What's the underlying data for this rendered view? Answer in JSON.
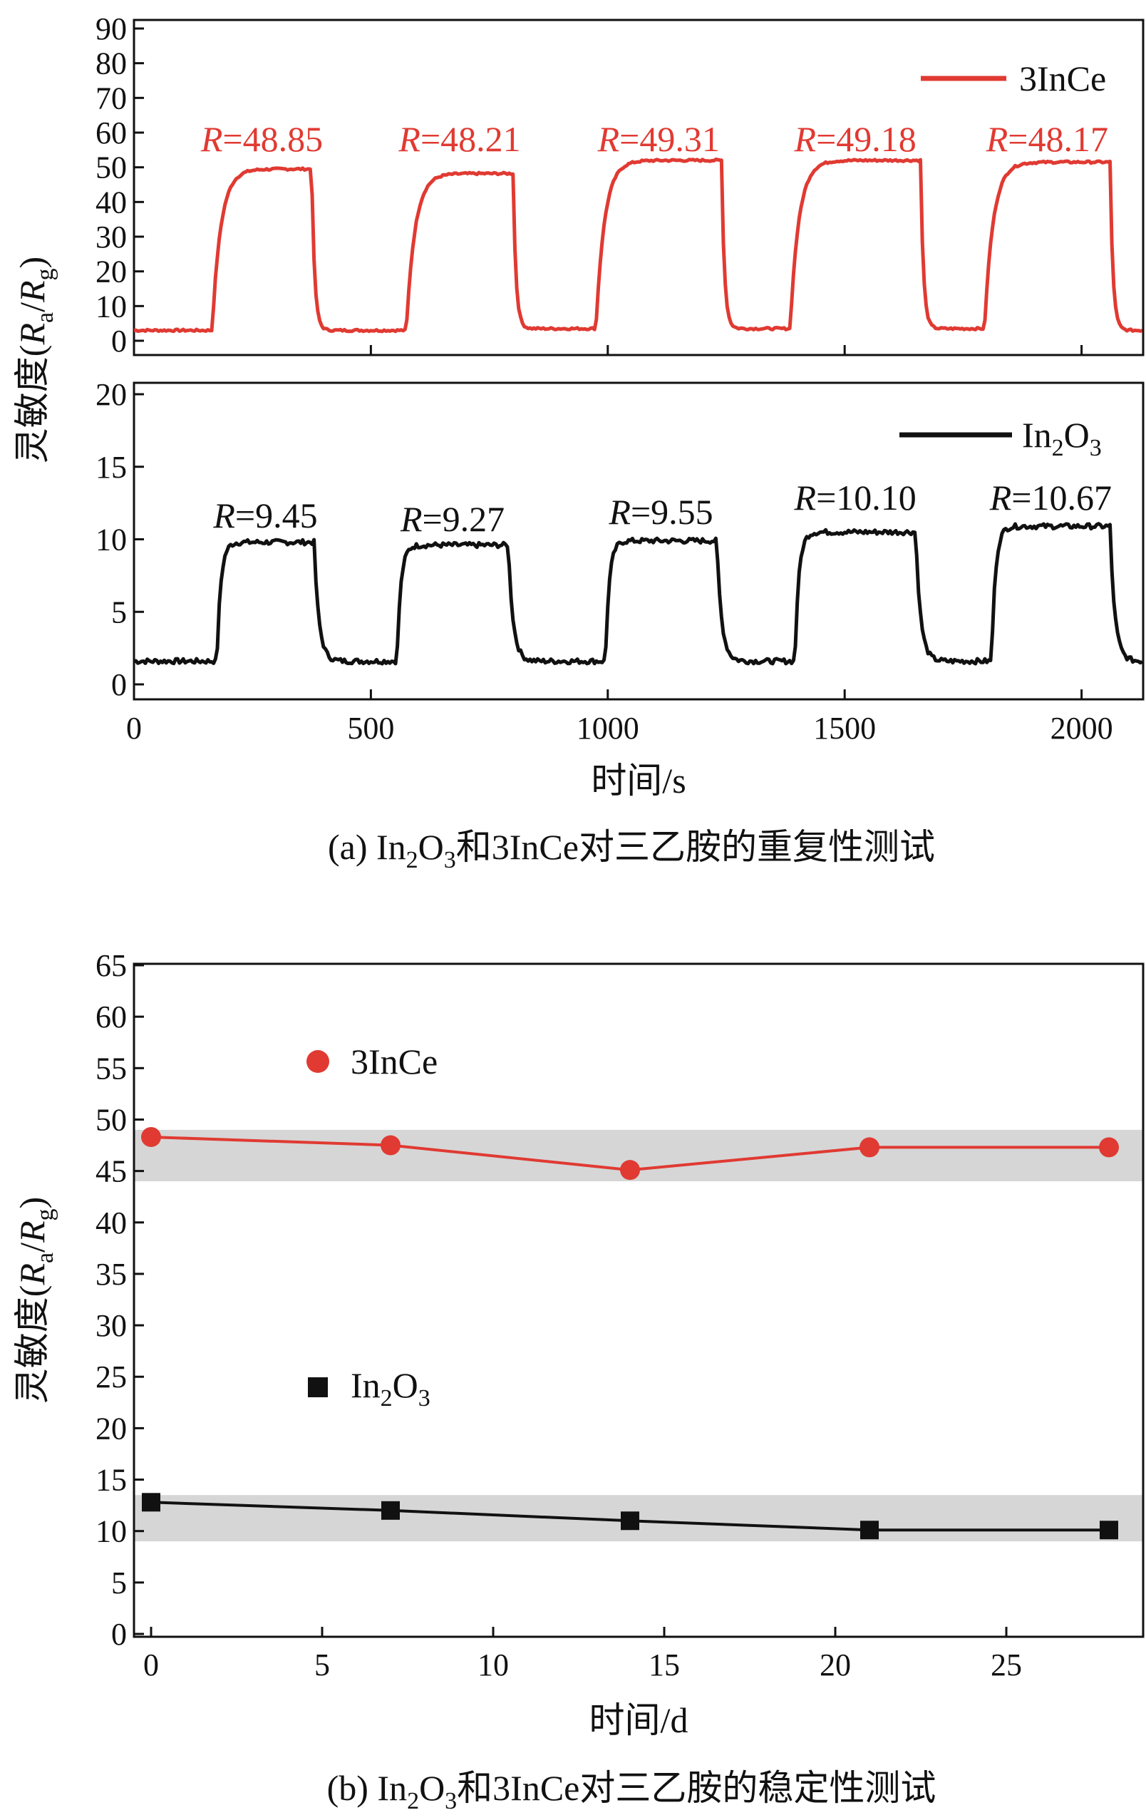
{
  "colors": {
    "red": "#e03a32",
    "black": "#111111",
    "band": "#d6d6d6"
  },
  "chart_data": [
    {
      "panel": "a-top",
      "type": "line",
      "ylim": [
        0,
        90
      ],
      "xlim": [
        0,
        2130
      ],
      "yticks": [
        "0",
        "10",
        "20",
        "30",
        "40",
        "50",
        "60",
        "70",
        "80",
        "90"
      ],
      "legend": {
        "label": "3InCe",
        "placement": "top-right"
      },
      "cycles": [
        {
          "on": 165,
          "off": 375,
          "base": 3,
          "plateau": 49.5,
          "label": "R=48.85",
          "value": 48.85
        },
        {
          "on": 575,
          "off": 800,
          "base": 3.5,
          "plateau": 48.2,
          "label": "R=48.21",
          "value": 48.21
        },
        {
          "on": 975,
          "off": 1240,
          "base": 3.5,
          "plateau": 52.0,
          "label": "R=49.31",
          "value": 49.31
        },
        {
          "on": 1385,
          "off": 1660,
          "base": 3.5,
          "plateau": 52.0,
          "label": "R=49.18",
          "value": 49.18
        },
        {
          "on": 1795,
          "off": 2060,
          "base": 3,
          "plateau": 51.5,
          "label": "R=48.17",
          "value": 48.17
        }
      ]
    },
    {
      "panel": "a-bottom",
      "type": "line",
      "ylim": [
        0,
        20
      ],
      "xlim": [
        0,
        2130
      ],
      "yticks": [
        "0",
        "5",
        "10",
        "15",
        "20"
      ],
      "xticks": [
        "0",
        "500",
        "1000",
        "1500",
        "2000"
      ],
      "xtick_values": [
        0,
        500,
        1000,
        1500,
        2000
      ],
      "legend": {
        "label_main": "In",
        "label_sub1": "2",
        "label_mid": "O",
        "label_sub2": "3",
        "placement": "top-right"
      },
      "cycles": [
        {
          "on": 175,
          "off": 380,
          "base": 1.6,
          "plateau": 9.8,
          "label": "R=9.45",
          "value": 9.45
        },
        {
          "on": 555,
          "off": 790,
          "base": 1.6,
          "plateau": 9.6,
          "label": "R=9.27",
          "value": 9.27
        },
        {
          "on": 995,
          "off": 1230,
          "base": 1.6,
          "plateau": 9.9,
          "label": "R=9.55",
          "value": 9.55
        },
        {
          "on": 1395,
          "off": 1650,
          "base": 1.6,
          "plateau": 10.5,
          "label": "R=10.10",
          "value": 10.1
        },
        {
          "on": 1810,
          "off": 2060,
          "base": 1.6,
          "plateau": 10.9,
          "label": "R=10.67",
          "value": 10.67
        }
      ]
    },
    {
      "panel": "b",
      "type": "line",
      "xlim": [
        -0.5,
        29
      ],
      "ylim": [
        0,
        65
      ],
      "xticks": [
        "0",
        "5",
        "10",
        "15",
        "20",
        "25"
      ],
      "xtick_values": [
        0,
        5,
        10,
        15,
        20,
        25
      ],
      "yticks": [
        "0",
        "5",
        "10",
        "15",
        "20",
        "25",
        "30",
        "35",
        "40",
        "45",
        "50",
        "55",
        "60",
        "65"
      ],
      "bands": [
        [
          44,
          49
        ],
        [
          9,
          13.5
        ]
      ],
      "series": [
        {
          "name": "3InCe",
          "marker": "circle",
          "color": "#e03a32",
          "x": [
            0,
            7,
            14,
            21,
            28
          ],
          "y": [
            48.3,
            47.5,
            45.1,
            47.3,
            47.3
          ]
        },
        {
          "name_main": "In",
          "name_sub1": "2",
          "name_mid": "O",
          "name_sub2": "3",
          "marker": "square",
          "color": "#111111",
          "x": [
            0,
            7,
            14,
            21,
            28
          ],
          "y": [
            12.8,
            12.0,
            11.0,
            10.1,
            10.1
          ]
        }
      ]
    }
  ],
  "text": {
    "ylabel_a_main": "灵敏度(",
    "ylabel_a_R1": "R",
    "ylabel_a_sub1": "a",
    "ylabel_a_slash": "/",
    "ylabel_a_R2": "R",
    "ylabel_a_sub2": "g",
    "ylabel_a_close": ")",
    "xlabel_a": "时间/s",
    "caption_a_pre": "(a) In",
    "caption_a_sub1": "2",
    "caption_a_mid": "O",
    "caption_a_sub2": "3",
    "caption_a_post": "和3InCe对三乙胺的重复性测试",
    "ylabel_b_main": "灵敏度(",
    "ylabel_b_R1": "R",
    "ylabel_b_sub1": "a",
    "ylabel_b_slash": "/",
    "ylabel_b_R2": "R",
    "ylabel_b_sub2": "g",
    "ylabel_b_close": ")",
    "xlabel_b": "时间/d",
    "caption_b_pre": "(b) In",
    "caption_b_sub1": "2",
    "caption_b_mid": "O",
    "caption_b_sub2": "3",
    "caption_b_post": "和3InCe对三乙胺的稳定性测试"
  }
}
